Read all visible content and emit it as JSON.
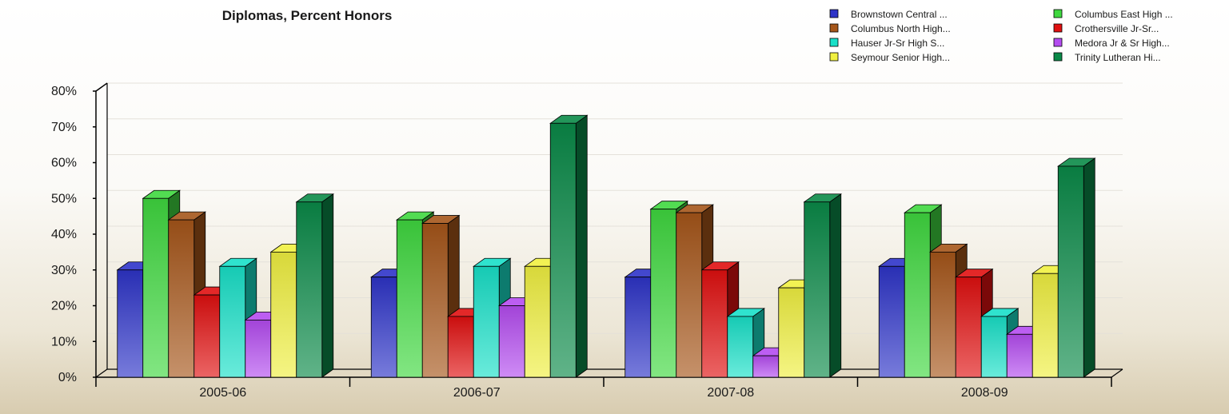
{
  "chart_data": {
    "type": "bar",
    "title": "Diplomas, Percent Honors",
    "categories": [
      "2005-06",
      "2006-07",
      "2007-08",
      "2008-09"
    ],
    "ylim": [
      0,
      80
    ],
    "yticks": [
      "0%",
      "10%",
      "20%",
      "30%",
      "40%",
      "50%",
      "60%",
      "70%",
      "80%"
    ],
    "grid": true,
    "legend_position": "top-right",
    "series": [
      {
        "name": "Brownstown Central ...",
        "color": "#2e34c8",
        "values": [
          30,
          28,
          28,
          31
        ]
      },
      {
        "name": "Columbus East High ...",
        "color": "#3fd83f",
        "values": [
          50,
          44,
          47,
          46
        ]
      },
      {
        "name": "Columbus North High...",
        "color": "#a5561a",
        "values": [
          44,
          43,
          46,
          35
        ]
      },
      {
        "name": "Crothersville Jr-Sr...",
        "color": "#e01010",
        "values": [
          23,
          17,
          30,
          28
        ]
      },
      {
        "name": "Hauser Jr-Sr High S...",
        "color": "#18e0c8",
        "values": [
          31,
          31,
          17,
          17
        ]
      },
      {
        "name": "Medora Jr & Sr High...",
        "color": "#b44cf0",
        "values": [
          16,
          20,
          6,
          12
        ]
      },
      {
        "name": "Seymour Senior High...",
        "color": "#f0f040",
        "values": [
          35,
          31,
          25,
          29
        ]
      },
      {
        "name": "Trinity Lutheran Hi...",
        "color": "#0a8a48",
        "values": [
          49,
          71,
          49,
          59
        ]
      }
    ]
  }
}
